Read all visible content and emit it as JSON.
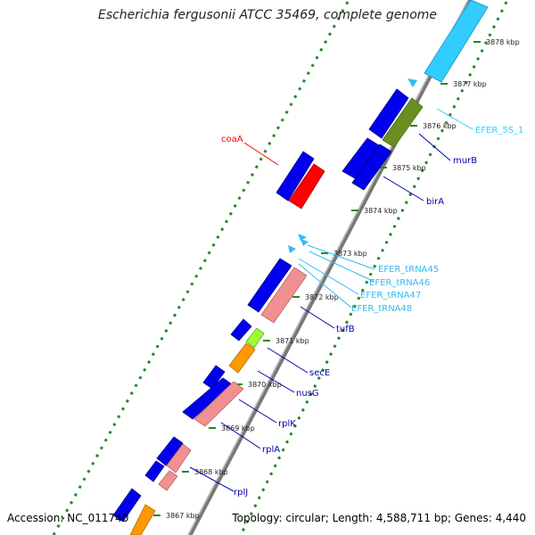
{
  "header": {
    "title": "Escherichia fergusonii ATCC 35469, complete genome"
  },
  "footer": {
    "accession": "Accession: NC_011740",
    "summary": "Topology: circular; Length: 4,588,711 bp; Genes: 4,440"
  },
  "colors": {
    "cds": "#0000ee",
    "rrna": "#33ccff",
    "trna": "#33bbee",
    "highlight": "#ff0000",
    "ribosomal": "#f09090",
    "olive": "#6b8e23",
    "lime": "#99ff33",
    "orange": "#ff9900",
    "backbone": "#808080",
    "ticks": "#228b22"
  },
  "scale": {
    "ticks": [
      "3867 kbp",
      "3868 kbp",
      "3869 kbp",
      "3870 kbp",
      "3871 kbp",
      "3872 kbp",
      "3873 kbp",
      "3874 kbp",
      "3875 kbp",
      "3876 kbp",
      "3877 kbp",
      "3878 kbp"
    ]
  },
  "genes": [
    {
      "label": "coaA",
      "color": "highlight"
    },
    {
      "label": "EFER_5S_1",
      "color": "rrna"
    },
    {
      "label": "murB",
      "color": "cds"
    },
    {
      "label": "birA",
      "color": "cds"
    },
    {
      "label": "EFER_tRNA45",
      "color": "trna"
    },
    {
      "label": "EFER_tRNA46",
      "color": "trna"
    },
    {
      "label": "EFER_tRNA47",
      "color": "trna"
    },
    {
      "label": "EFER_tRNA48",
      "color": "trna"
    },
    {
      "label": "tufB",
      "color": "cds"
    },
    {
      "label": "secE",
      "color": "cds"
    },
    {
      "label": "nusG",
      "color": "cds"
    },
    {
      "label": "rplK",
      "color": "cds"
    },
    {
      "label": "rplA",
      "color": "cds"
    },
    {
      "label": "rplJ",
      "color": "cds"
    }
  ]
}
